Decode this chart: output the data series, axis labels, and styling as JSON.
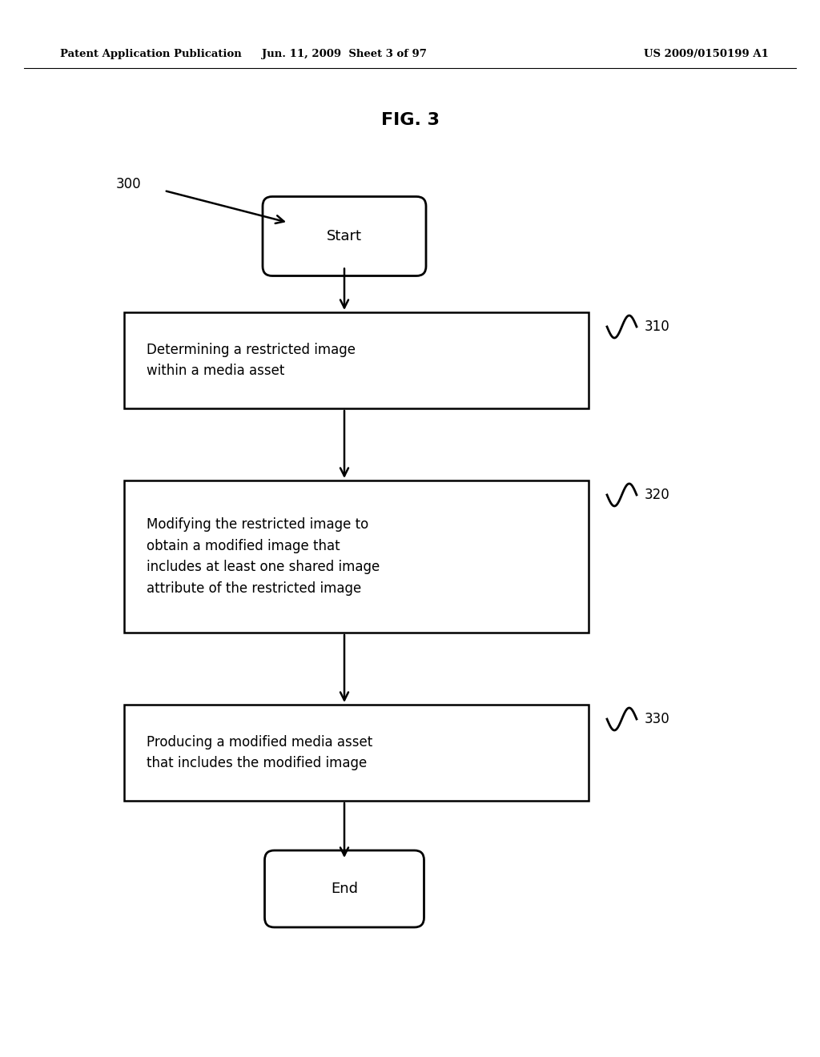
{
  "title": "FIG. 3",
  "header_left": "Patent Application Publication",
  "header_mid": "Jun. 11, 2009  Sheet 3 of 97",
  "header_right": "US 2009/0150199 A1",
  "label_300": "300",
  "label_start": "Start",
  "label_end": "End",
  "box1_label": "310",
  "box1_text": "Determining a restricted image\nwithin a media asset",
  "box2_label": "320",
  "box2_text": "Modifying the restricted image to\nobtain a modified image that\nincludes at least one shared image\nattribute of the restricted image",
  "box3_label": "330",
  "box3_text": "Producing a modified media asset\nthat includes the modified image",
  "bg_color": "#ffffff",
  "box_edge_color": "#000000",
  "text_color": "#000000",
  "arrow_color": "#000000"
}
